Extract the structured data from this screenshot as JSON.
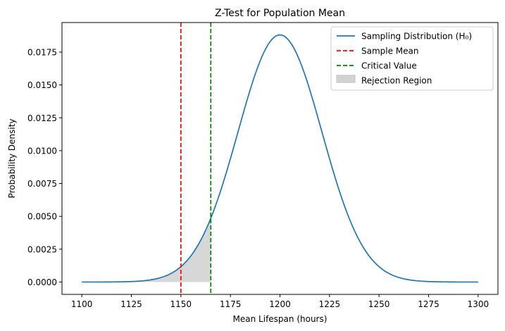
{
  "chart_data": {
    "type": "line",
    "title": "Z-Test for Population Mean",
    "xlabel": "Mean Lifespan (hours)",
    "ylabel": "Probability Density",
    "xlim": [
      1090,
      1310
    ],
    "ylim": [
      -0.00094,
      0.01975
    ],
    "xticks": [
      1100,
      1125,
      1150,
      1175,
      1200,
      1225,
      1250,
      1275,
      1300
    ],
    "yticks": [
      0.0,
      0.0025,
      0.005,
      0.0075,
      0.01,
      0.0125,
      0.015,
      0.0175
    ],
    "ytick_labels": [
      "0.0000",
      "0.0025",
      "0.0050",
      "0.0075",
      "0.0100",
      "0.0125",
      "0.0150",
      "0.0175"
    ],
    "grid": false,
    "legend_position": "top-right",
    "distribution": {
      "name": "Sampling Distribution (H₀)",
      "mean": 1200,
      "std_error": 21.213,
      "x_range": [
        1100,
        1300
      ],
      "color": "#1f77b4"
    },
    "sample_mean": {
      "name": "Sample Mean",
      "x": 1150,
      "color": "#ff0000"
    },
    "critical_value": {
      "name": "Critical Value",
      "x": 1165.1,
      "color": "#008000"
    },
    "rejection_region": {
      "name": "Rejection Region",
      "x_range": [
        1100,
        1165.1
      ],
      "color": "#d3d3d3"
    },
    "legend": [
      "Sampling Distribution (H₀)",
      "Sample Mean",
      "Critical Value",
      "Rejection Region"
    ]
  }
}
